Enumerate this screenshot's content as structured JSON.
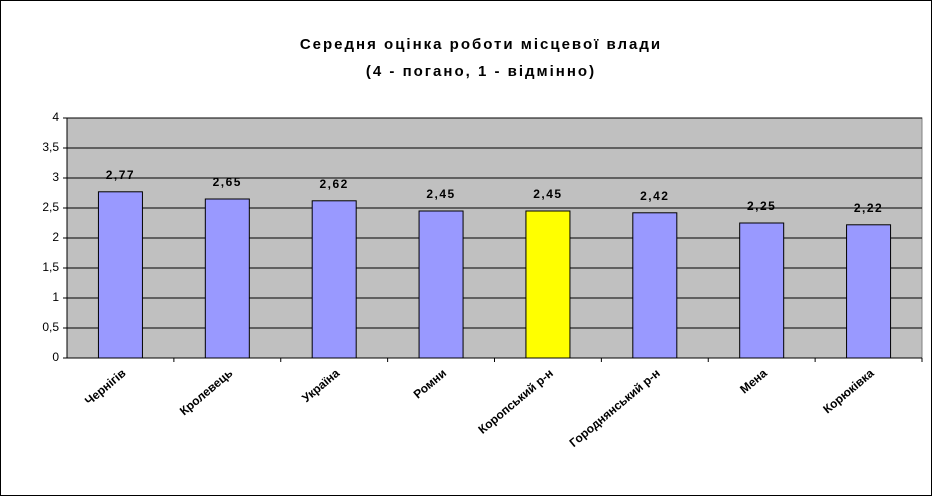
{
  "chart_data": {
    "type": "bar",
    "title": [
      "Середня оцінка роботи місцевої влади",
      "(4 - погано, 1 - відмінно)"
    ],
    "categories": [
      "Чернігів",
      "Кролевець",
      "Україна",
      "Ромни",
      "Коропський р-н",
      "Городнянський р-н",
      "Мена",
      "Корюківка"
    ],
    "values": [
      2.77,
      2.65,
      2.62,
      2.45,
      2.45,
      2.42,
      2.25,
      2.22
    ],
    "value_labels": [
      "2,77",
      "2,65",
      "2,62",
      "2,45",
      "2,45",
      "2,42",
      "2,25",
      "2,22"
    ],
    "colors": [
      "#9999ff",
      "#9999ff",
      "#9999ff",
      "#9999ff",
      "#ffff00",
      "#9999ff",
      "#9999ff",
      "#9999ff"
    ],
    "ylim": [
      0,
      4
    ],
    "yticks": [
      0,
      {
        "value": 0.5,
        "label": "0,5"
      },
      1,
      {
        "value": 1.5,
        "label": "1,5"
      },
      2,
      {
        "value": 2.5,
        "label": "2,5"
      },
      3,
      {
        "value": 3.5,
        "label": "3,5"
      },
      4
    ],
    "grid": true
  }
}
